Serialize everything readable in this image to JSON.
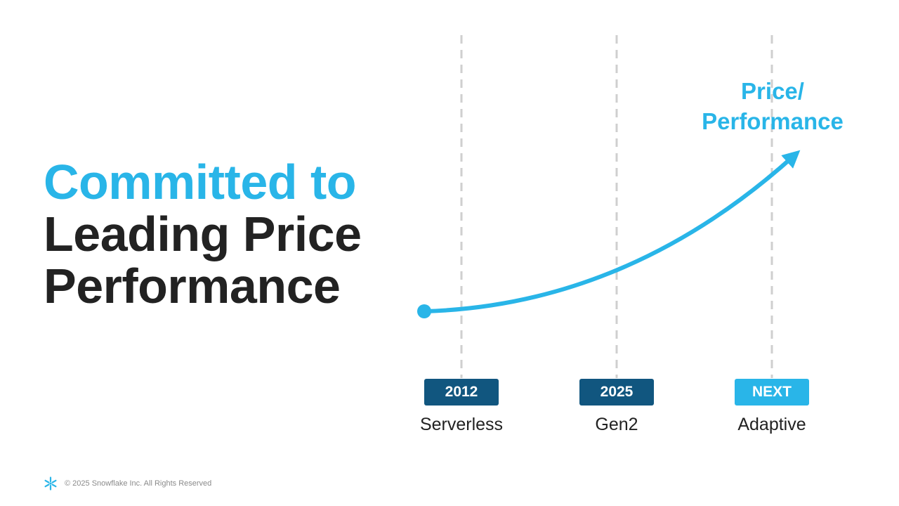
{
  "headline": {
    "line1": "Committed to",
    "line2": "Leading Price",
    "line3": "Performance"
  },
  "curve_label": {
    "line1": "Price/",
    "line2": "Performance"
  },
  "milestones": [
    {
      "year": "2012",
      "label": "Serverless"
    },
    {
      "year": "2025",
      "label": "Gen2"
    },
    {
      "year": "NEXT",
      "label": "Adaptive"
    }
  ],
  "footer": {
    "logo_icon": "snowflake-icon",
    "copyright": "© 2025 Snowflake Inc. All Rights Reserved"
  },
  "colors": {
    "accent": "#29b5e8",
    "dark_badge": "#11567f",
    "text_dark": "#222222",
    "gridline": "#cfcfcf"
  }
}
